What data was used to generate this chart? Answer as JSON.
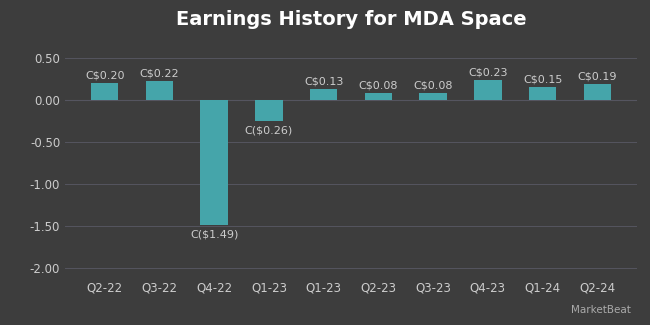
{
  "title": "Earnings History for MDA Space",
  "categories": [
    "Q2-22",
    "Q3-22",
    "Q4-22",
    "Q1-23",
    "Q1-23",
    "Q2-23",
    "Q3-23",
    "Q4-23",
    "Q1-24",
    "Q2-24"
  ],
  "values": [
    0.2,
    0.22,
    -1.49,
    -0.26,
    0.13,
    0.08,
    0.08,
    0.23,
    0.15,
    0.19
  ],
  "labels": [
    "C$0.20",
    "C$0.22",
    "C($1.49)",
    "C($0.26)",
    "C$0.13",
    "C$0.08",
    "C$0.08",
    "C$0.23",
    "C$0.15",
    "C$0.19"
  ],
  "label_negative": [
    false,
    false,
    true,
    true,
    false,
    false,
    false,
    false,
    false,
    false
  ],
  "bar_color": "#45a5aa",
  "background_color": "#3d3d3d",
  "text_color": "#cccccc",
  "title_color": "#ffffff",
  "grid_color": "#555560",
  "ylim": [
    -2.1,
    0.72
  ],
  "yticks": [
    -2.0,
    -1.5,
    -1.0,
    -0.5,
    0.0,
    0.5
  ],
  "title_fontsize": 14,
  "tick_fontsize": 8.5,
  "label_fontsize": 8,
  "bar_width": 0.5
}
